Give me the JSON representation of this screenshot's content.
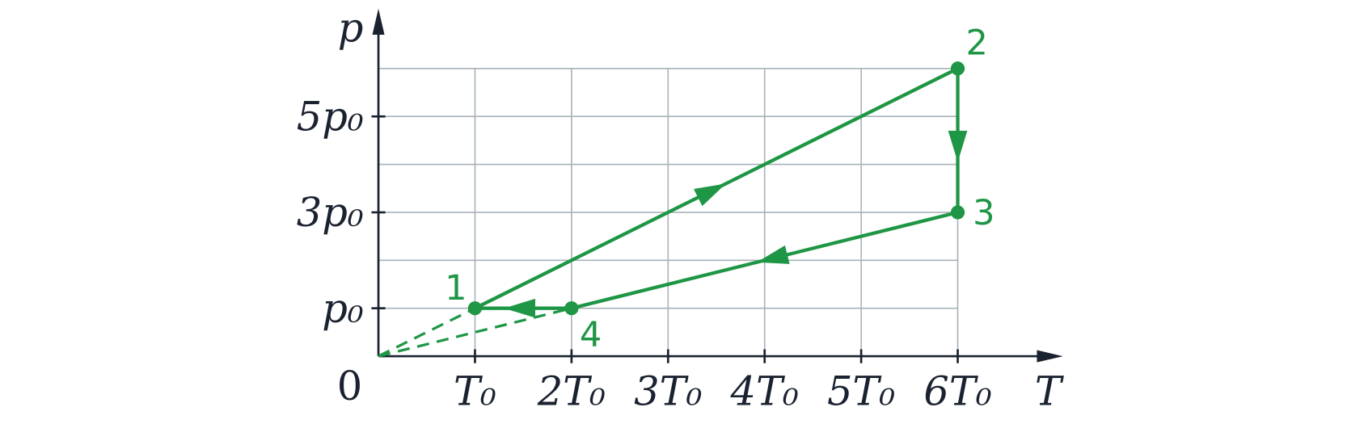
{
  "axes": {
    "x_label": "T",
    "y_label": "p",
    "origin": "0"
  },
  "x_ticks": [
    {
      "value": 1,
      "label": "T₀"
    },
    {
      "value": 2,
      "label": "2T₀"
    },
    {
      "value": 3,
      "label": "3T₀"
    },
    {
      "value": 4,
      "label": "4T₀"
    },
    {
      "value": 5,
      "label": "5T₀"
    },
    {
      "value": 6,
      "label": "6T₀"
    }
  ],
  "y_ticks": [
    {
      "value": 1,
      "label": "p₀"
    },
    {
      "value": 3,
      "label": "3p₀"
    },
    {
      "value": 5,
      "label": "5p₀"
    }
  ],
  "grid": {
    "x_max": 6,
    "y_max": 6
  },
  "states": [
    {
      "label": "1",
      "T": 1,
      "p": 1
    },
    {
      "label": "2",
      "T": 6,
      "p": 6
    },
    {
      "label": "3",
      "T": 6,
      "p": 3
    },
    {
      "label": "4",
      "T": 2,
      "p": 1
    }
  ]
}
